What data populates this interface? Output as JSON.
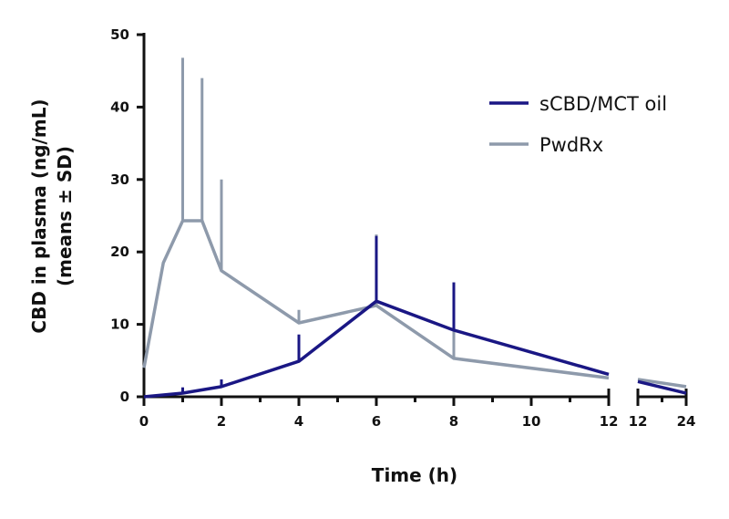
{
  "chart_data": {
    "type": "line",
    "xlabel": "Time (h)",
    "ylabel": [
      "CBD in plasma (ng/mL)",
      "(means ± SD)"
    ],
    "ylim": [
      0,
      50
    ],
    "yticks": [
      0,
      10,
      20,
      30,
      40,
      50
    ],
    "x_segments": [
      {
        "range": [
          0,
          12
        ],
        "tick_labels": [
          "0",
          "2",
          "4",
          "6",
          "8",
          "10",
          "12"
        ],
        "major_ticks": [
          0,
          2,
          4,
          6,
          8,
          10,
          12
        ],
        "minor_ticks": [
          1,
          3,
          5,
          7,
          9,
          11
        ]
      },
      {
        "range": [
          12,
          24
        ],
        "tick_labels": [
          "12",
          "24"
        ],
        "major_ticks": [
          12,
          24
        ],
        "minor_ticks": [
          18
        ]
      }
    ],
    "grid": false,
    "legend_position": "top-right",
    "series": [
      {
        "name": "sCBD/MCT oil",
        "color": "#1a1784",
        "x": [
          0,
          1,
          2,
          4,
          6,
          8,
          12,
          24
        ],
        "y": [
          0,
          0.5,
          1.4,
          4.9,
          13.2,
          9.2,
          3.1,
          0.5
        ],
        "sd_upper": [
          null,
          1.3,
          2.4,
          8.6,
          22.2,
          15.8,
          null,
          null
        ]
      },
      {
        "name": "PwdRx",
        "color": "#8e9aab",
        "x": [
          0,
          0.5,
          1,
          1.5,
          2,
          4,
          6,
          8,
          12,
          24
        ],
        "y": [
          4.0,
          18.5,
          24.3,
          24.3,
          17.4,
          10.2,
          12.6,
          5.3,
          2.6,
          1.4
        ],
        "sd_upper": [
          null,
          null,
          46.8,
          44.0,
          30.0,
          12.0,
          22.4,
          9.0,
          null,
          null
        ]
      }
    ]
  }
}
